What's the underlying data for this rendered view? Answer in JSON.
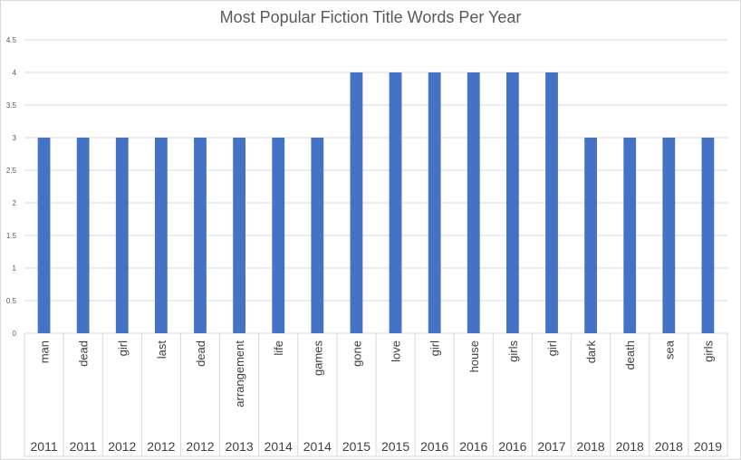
{
  "chart_data": {
    "type": "bar",
    "title": "Most Popular Fiction Title Words Per Year",
    "xlabel": "",
    "ylabel": "",
    "ylim": [
      0,
      4.5
    ],
    "yticks": [
      "0",
      "0.5",
      "1",
      "1.5",
      "2",
      "2.5",
      "3",
      "3.5",
      "4",
      "4.5"
    ],
    "grid": true,
    "legend": "none",
    "bar_color": "#4472c4",
    "categories": [
      {
        "word": "man",
        "year": "2011"
      },
      {
        "word": "dead",
        "year": "2011"
      },
      {
        "word": "girl",
        "year": "2012"
      },
      {
        "word": "last",
        "year": "2012"
      },
      {
        "word": "dead",
        "year": "2012"
      },
      {
        "word": "arrangement",
        "year": "2013"
      },
      {
        "word": "life",
        "year": "2014"
      },
      {
        "word": "games",
        "year": "2014"
      },
      {
        "word": "gone",
        "year": "2015"
      },
      {
        "word": "love",
        "year": "2015"
      },
      {
        "word": "girl",
        "year": "2016"
      },
      {
        "word": "house",
        "year": "2016"
      },
      {
        "word": "girls",
        "year": "2016"
      },
      {
        "word": "girl",
        "year": "2017"
      },
      {
        "word": "dark",
        "year": "2018"
      },
      {
        "word": "death",
        "year": "2018"
      },
      {
        "word": "sea",
        "year": "2018"
      },
      {
        "word": "girls",
        "year": "2019"
      }
    ],
    "values": [
      3,
      3,
      3,
      3,
      3,
      3,
      3,
      3,
      4,
      4,
      4,
      4,
      4,
      4,
      3,
      3,
      3,
      3
    ]
  }
}
